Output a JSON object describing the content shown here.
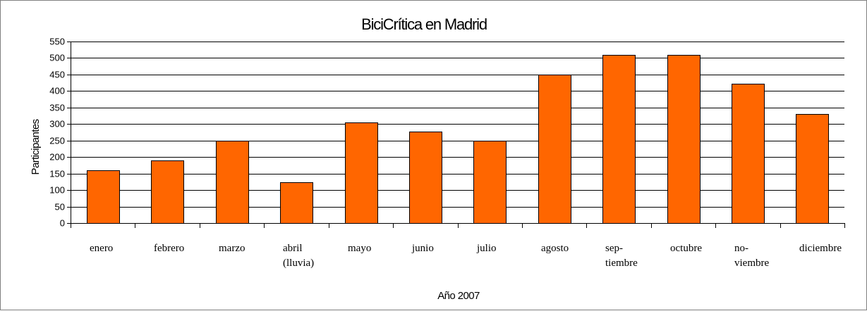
{
  "chart_data": {
    "type": "bar",
    "title": "BiciCrítica en Madrid",
    "xlabel": "Año 2007",
    "ylabel": "Participantes",
    "ylim": [
      0,
      550
    ],
    "yticks": [
      0,
      50,
      100,
      150,
      200,
      250,
      300,
      350,
      400,
      450,
      500,
      550
    ],
    "grid": true,
    "legend": "none",
    "bar_color": "#FF6600",
    "categories": [
      [
        "enero"
      ],
      [
        "febrero"
      ],
      [
        "marzo"
      ],
      [
        "abril",
        "(lluvia)"
      ],
      [
        "mayo"
      ],
      [
        "junio"
      ],
      [
        "julio"
      ],
      [
        "agosto"
      ],
      [
        "sep-",
        "tiembre"
      ],
      [
        "octubre"
      ],
      [
        "no-",
        "viembre"
      ],
      [
        "diciembre"
      ]
    ],
    "values": [
      160,
      190,
      250,
      123,
      305,
      278,
      250,
      450,
      510,
      510,
      423,
      330
    ]
  }
}
